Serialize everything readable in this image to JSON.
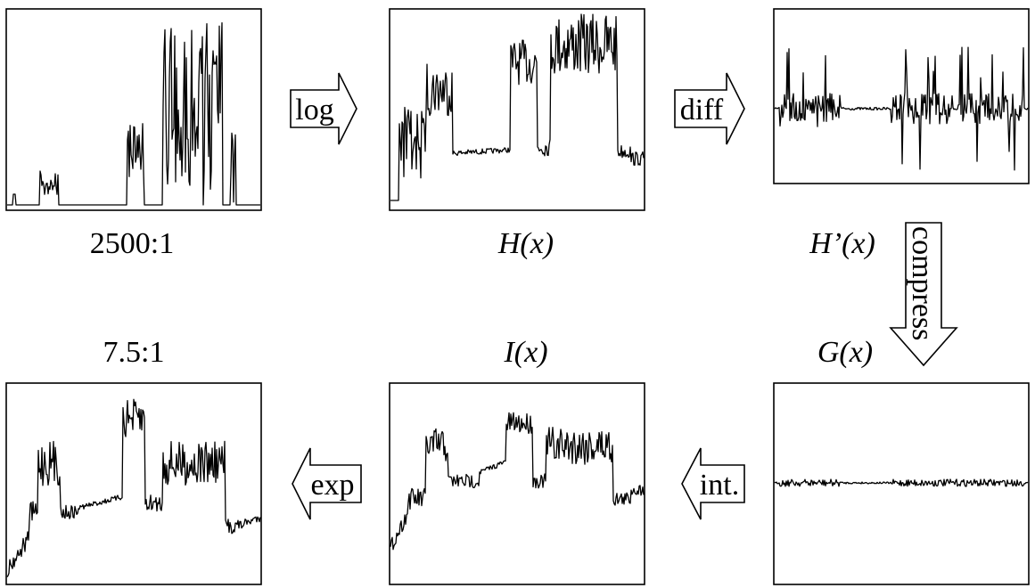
{
  "panels": [
    {
      "id": "input",
      "label": "2500:1"
    },
    {
      "id": "log-h",
      "label": "H(x)"
    },
    {
      "id": "deriv",
      "label": "H’(x)"
    },
    {
      "id": "compressed",
      "label": "G(x)"
    },
    {
      "id": "integrated",
      "label": "I(x)"
    },
    {
      "id": "output",
      "label": "7.5:1"
    }
  ],
  "arrows": [
    {
      "id": "log",
      "text": "log"
    },
    {
      "id": "diff",
      "text": "diff"
    },
    {
      "id": "compress",
      "text": "compress"
    },
    {
      "id": "int",
      "text": "int."
    },
    {
      "id": "exp",
      "text": "exp"
    }
  ]
}
